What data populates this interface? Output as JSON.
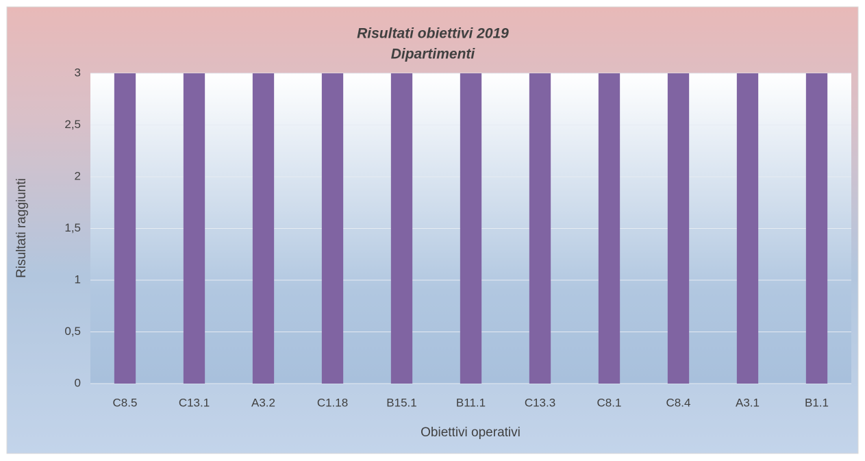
{
  "chart_data": {
    "type": "bar",
    "title": "Risultati obiettivi 2019",
    "subtitle": "Dipartimenti",
    "x_label": "Obiettivi operativi",
    "y_label": "Risultati raggiunti",
    "categories": [
      "C8.5",
      "C13.1",
      "A3.2",
      "C1.18",
      "B15.1",
      "B11.1",
      "C13.3",
      "C8.1",
      "C8.4",
      "A3.1",
      "B1.1"
    ],
    "values": [
      3,
      3,
      3,
      3,
      3,
      3,
      3,
      3,
      3,
      3,
      3
    ],
    "color": "#8064a2",
    "ylim": [
      0,
      3
    ],
    "yticks": [
      0,
      {
        "value": 0.5,
        "label": "0,5"
      },
      1,
      {
        "value": 1.5,
        "label": "1,5"
      },
      2,
      {
        "value": 2.5,
        "label": "2,5"
      },
      3
    ],
    "grid": true
  }
}
